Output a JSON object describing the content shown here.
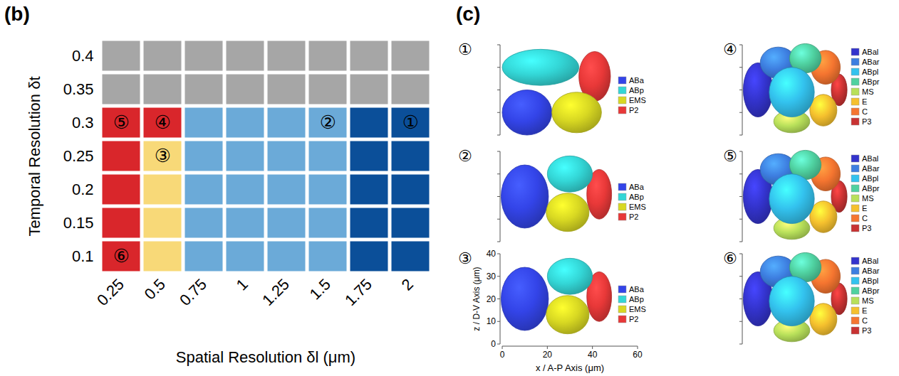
{
  "chart_data": [
    {
      "type": "heatmap",
      "panel_label": "(b)",
      "xlabel": "Spatial Resolution δl (μm)",
      "ylabel": "Temporal Resolution δt",
      "x": [
        0.25,
        0.5,
        0.75,
        1,
        1.25,
        1.5,
        1.75,
        2
      ],
      "y": [
        0.1,
        0.15,
        0.2,
        0.25,
        0.3,
        0.35,
        0.4
      ],
      "colors": [
        [
          "#d9262b",
          "#f8d978",
          "#6baad8",
          "#6baad8",
          "#6baad8",
          "#6baad8",
          "#0b4f99",
          "#0b4f99"
        ],
        [
          "#d9262b",
          "#f8d978",
          "#6baad8",
          "#6baad8",
          "#6baad8",
          "#6baad8",
          "#0b4f99",
          "#0b4f99"
        ],
        [
          "#d9262b",
          "#f8d978",
          "#6baad8",
          "#6baad8",
          "#6baad8",
          "#6baad8",
          "#0b4f99",
          "#0b4f99"
        ],
        [
          "#d9262b",
          "#f8d978",
          "#6baad8",
          "#6baad8",
          "#6baad8",
          "#6baad8",
          "#0b4f99",
          "#0b4f99"
        ],
        [
          "#d9262b",
          "#d9262b",
          "#6baad8",
          "#6baad8",
          "#6baad8",
          "#6baad8",
          "#0b4f99",
          "#0b4f99"
        ],
        [
          "#a6a6a6",
          "#a6a6a6",
          "#a6a6a6",
          "#a6a6a6",
          "#a6a6a6",
          "#a6a6a6",
          "#a6a6a6",
          "#a6a6a6"
        ],
        [
          "#a6a6a6",
          "#a6a6a6",
          "#a6a6a6",
          "#a6a6a6",
          "#a6a6a6",
          "#a6a6a6",
          "#a6a6a6",
          "#a6a6a6"
        ]
      ],
      "annotations": [
        {
          "x": 2,
          "y": 0.3,
          "text": "①"
        },
        {
          "x": 1.5,
          "y": 0.3,
          "text": "②"
        },
        {
          "x": 0.5,
          "y": 0.25,
          "text": "③"
        },
        {
          "x": 0.5,
          "y": 0.3,
          "text": "④"
        },
        {
          "x": 0.25,
          "y": 0.3,
          "text": "⑤"
        },
        {
          "x": 0.25,
          "y": 0.1,
          "text": "⑥"
        }
      ]
    },
    {
      "type": "cell_shapes",
      "panel_label": "(c)",
      "xlabel": "x / A-P Axis (μm)",
      "ylabel": "z / D-V Axis (μm)",
      "xlim": [
        0,
        60
      ],
      "ylim": [
        0,
        40
      ],
      "xticks": [
        0,
        20,
        40,
        60
      ],
      "yticks": [
        0,
        10,
        20,
        30,
        40
      ],
      "panels": [
        {
          "label": "①",
          "tick_labels": false,
          "series": [
            {
              "name": "ABa",
              "color": "#3344e8"
            },
            {
              "name": "ABp",
              "color": "#33d6d6"
            },
            {
              "name": "EMS",
              "color": "#d8d822"
            },
            {
              "name": "P2",
              "color": "#e83838"
            }
          ]
        },
        {
          "label": "②",
          "tick_labels": false,
          "series": [
            {
              "name": "ABa",
              "color": "#3344e8"
            },
            {
              "name": "ABp",
              "color": "#33d6d6"
            },
            {
              "name": "EMS",
              "color": "#d8d822"
            },
            {
              "name": "P2",
              "color": "#e83838"
            }
          ]
        },
        {
          "label": "③",
          "tick_labels": true,
          "series": [
            {
              "name": "ABa",
              "color": "#3344e8"
            },
            {
              "name": "ABp",
              "color": "#33d6d6"
            },
            {
              "name": "EMS",
              "color": "#d8d822"
            },
            {
              "name": "P2",
              "color": "#e83838"
            }
          ]
        },
        {
          "label": "④",
          "tick_labels": false,
          "series": [
            {
              "name": "ABal",
              "color": "#3333cc"
            },
            {
              "name": "ABar",
              "color": "#3d7ee0"
            },
            {
              "name": "ABpl",
              "color": "#33c2ee"
            },
            {
              "name": "ABpr",
              "color": "#4fd1a0"
            },
            {
              "name": "MS",
              "color": "#b8e05a"
            },
            {
              "name": "E",
              "color": "#f5c02e"
            },
            {
              "name": "C",
              "color": "#f57530"
            },
            {
              "name": "P3",
              "color": "#c83232"
            }
          ]
        },
        {
          "label": "⑤",
          "tick_labels": false,
          "series": [
            {
              "name": "ABal",
              "color": "#3333cc"
            },
            {
              "name": "ABar",
              "color": "#3d7ee0"
            },
            {
              "name": "ABpl",
              "color": "#33c2ee"
            },
            {
              "name": "ABpr",
              "color": "#4fd1a0"
            },
            {
              "name": "MS",
              "color": "#b8e05a"
            },
            {
              "name": "E",
              "color": "#f5c02e"
            },
            {
              "name": "C",
              "color": "#f57530"
            },
            {
              "name": "P3",
              "color": "#c83232"
            }
          ]
        },
        {
          "label": "⑥",
          "tick_labels": false,
          "series": [
            {
              "name": "ABal",
              "color": "#3333cc"
            },
            {
              "name": "ABar",
              "color": "#3d7ee0"
            },
            {
              "name": "ABpl",
              "color": "#33c2ee"
            },
            {
              "name": "ABpr",
              "color": "#4fd1a0"
            },
            {
              "name": "MS",
              "color": "#b8e05a"
            },
            {
              "name": "E",
              "color": "#f5c02e"
            },
            {
              "name": "C",
              "color": "#f57530"
            },
            {
              "name": "P3",
              "color": "#c83232"
            }
          ]
        }
      ]
    }
  ]
}
